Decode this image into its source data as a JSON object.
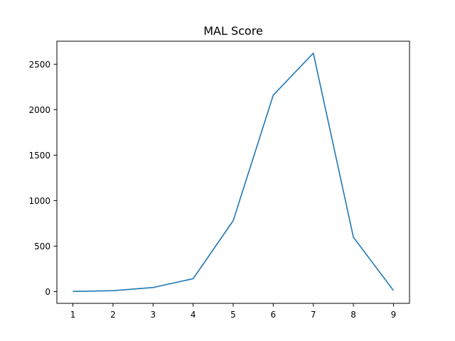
{
  "chart_data": {
    "type": "line",
    "title": "MAL Score",
    "xlabel": "",
    "ylabel": "",
    "x": [
      1,
      2,
      3,
      4,
      5,
      6,
      7,
      8,
      9
    ],
    "series": [
      {
        "values": [
          2,
          10,
          45,
          142,
          780,
          2160,
          2622,
          598,
          12
        ],
        "color": "#1f77b4"
      }
    ],
    "x_ticks": [
      "1",
      "2",
      "3",
      "4",
      "5",
      "6",
      "7",
      "8",
      "9"
    ],
    "y_ticks": [
      0,
      500,
      1000,
      1500,
      2000,
      2500
    ],
    "xlim": [
      0.6,
      9.4
    ],
    "ylim": [
      -129,
      2753
    ],
    "grid": false,
    "legend": "none"
  }
}
